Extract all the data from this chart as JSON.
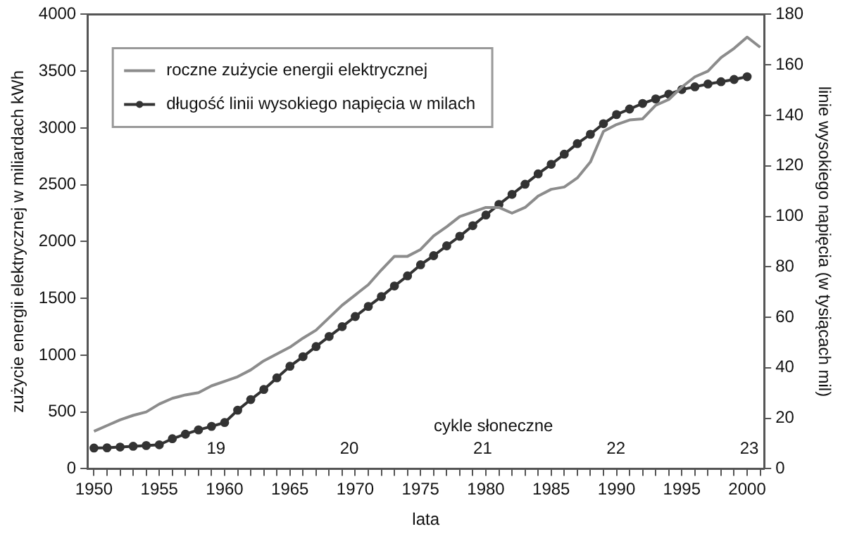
{
  "chart_data": {
    "type": "line",
    "xlabel": "lata",
    "ylabel": "zużycie energii elektrycznej w miliardach kWh",
    "y2label": "linie wysokiego napięcia (w tysiącach mil)",
    "x": [
      1950,
      1951,
      1952,
      1953,
      1954,
      1955,
      1956,
      1957,
      1958,
      1959,
      1960,
      1961,
      1962,
      1963,
      1964,
      1965,
      1966,
      1967,
      1968,
      1969,
      1970,
      1971,
      1972,
      1973,
      1974,
      1975,
      1976,
      1977,
      1978,
      1979,
      1980,
      1981,
      1982,
      1983,
      1984,
      1985,
      1986,
      1987,
      1988,
      1989,
      1990,
      1991,
      1992,
      1993,
      1994,
      1995,
      1996,
      1997,
      1998,
      1999,
      2000,
      2001
    ],
    "series": [
      {
        "name": "roczne zużycie energii elektrycznej",
        "color": "#8c8c8c",
        "marker": "none",
        "values": [
          330,
          380,
          430,
          470,
          500,
          570,
          620,
          650,
          670,
          730,
          770,
          810,
          870,
          950,
          1010,
          1070,
          1150,
          1220,
          1330,
          1440,
          1530,
          1620,
          1750,
          1870,
          1870,
          1930,
          2050,
          2130,
          2220,
          2260,
          2300,
          2300,
          2250,
          2300,
          2400,
          2460,
          2480,
          2560,
          2700,
          2970,
          3030,
          3070,
          3080,
          3200,
          3250,
          3360,
          3450,
          3500,
          3620,
          3700,
          3800,
          3710
        ]
      },
      {
        "name": "długość linii wysokiego napięcia w milach",
        "color": "#333333",
        "marker": "circle",
        "axis": "y2",
        "values": [
          8.2,
          8.3,
          8.6,
          8.9,
          9.2,
          9.5,
          11.9,
          13.7,
          15.4,
          16.8,
          18.3,
          23.2,
          27.4,
          31.4,
          36,
          40.6,
          44.4,
          48.4,
          52.4,
          56.3,
          60.3,
          64.3,
          68.2,
          72.4,
          76.4,
          80.8,
          84.4,
          88.3,
          92.1,
          96.3,
          100.5,
          104.7,
          108.7,
          112.7,
          116.8,
          120.6,
          124.6,
          128.8,
          132.5,
          136.7,
          140.3,
          142.5,
          144.7,
          146.5,
          148.4,
          150.2,
          151.3,
          152.4,
          153.3,
          154.2,
          155.3,
          null
        ]
      }
    ],
    "xlim": [
      1949.5,
      2001.3
    ],
    "xticks": [
      1950,
      {
        "value": 1951,
        "label": null
      },
      {
        "value": 1952,
        "label": null
      },
      {
        "value": 1953,
        "label": null
      },
      {
        "value": 1954,
        "label": null
      },
      1955,
      {
        "value": 1956,
        "label": null
      },
      {
        "value": 1957,
        "label": null
      },
      {
        "value": 1958,
        "label": null
      },
      {
        "value": 1959,
        "label": null
      },
      1960,
      {
        "value": 1961,
        "label": null
      },
      {
        "value": 1962,
        "label": null
      },
      {
        "value": 1963,
        "label": null
      },
      {
        "value": 1964,
        "label": null
      },
      1965,
      {
        "value": 1966,
        "label": null
      },
      {
        "value": 1967,
        "label": null
      },
      {
        "value": 1968,
        "label": null
      },
      {
        "value": 1969,
        "label": null
      },
      1970,
      {
        "value": 1971,
        "label": null
      },
      {
        "value": 1972,
        "label": null
      },
      {
        "value": 1973,
        "label": null
      },
      {
        "value": 1974,
        "label": null
      },
      1975,
      {
        "value": 1976,
        "label": null
      },
      {
        "value": 1977,
        "label": null
      },
      {
        "value": 1978,
        "label": null
      },
      {
        "value": 1979,
        "label": null
      },
      1980,
      {
        "value": 1981,
        "label": null
      },
      {
        "value": 1982,
        "label": null
      },
      {
        "value": 1983,
        "label": null
      },
      {
        "value": 1984,
        "label": null
      },
      1985,
      {
        "value": 1986,
        "label": null
      },
      {
        "value": 1987,
        "label": null
      },
      {
        "value": 1988,
        "label": null
      },
      {
        "value": 1989,
        "label": null
      },
      1990,
      {
        "value": 1991,
        "label": null
      },
      {
        "value": 1992,
        "label": null
      },
      {
        "value": 1993,
        "label": null
      },
      {
        "value": 1994,
        "label": null
      },
      1995,
      {
        "value": 1996,
        "label": null
      },
      {
        "value": 1997,
        "label": null
      },
      {
        "value": 1998,
        "label": null
      },
      {
        "value": 1999,
        "label": null
      },
      2000,
      {
        "value": 2001,
        "label": null
      }
    ],
    "ylim": [
      0,
      4000
    ],
    "yticks": [
      0,
      500,
      1000,
      1500,
      2000,
      2500,
      3000,
      3500,
      4000
    ],
    "y2lim": [
      0,
      180
    ],
    "y2ticks": [
      0,
      20,
      40,
      60,
      80,
      100,
      120,
      140,
      160,
      180
    ],
    "grid": false,
    "legend": "top left",
    "annotations": [
      "cykle słoneczne",
      "19",
      "20",
      "21",
      "22",
      "23"
    ]
  }
}
